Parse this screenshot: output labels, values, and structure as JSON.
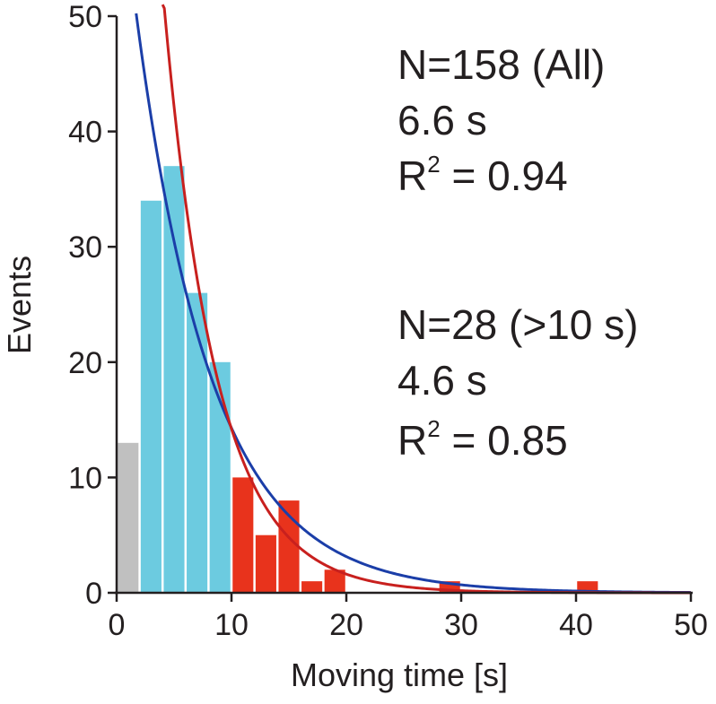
{
  "chart_data": {
    "type": "bar",
    "xlabel": "Moving time [s]",
    "ylabel": "Events",
    "xlim": [
      0,
      50
    ],
    "ylim": [
      0,
      50
    ],
    "xticks": [
      0,
      10,
      20,
      30,
      40,
      50
    ],
    "yticks": [
      0,
      10,
      20,
      30,
      40,
      50
    ],
    "bin_width": 2,
    "bars": [
      {
        "x": 1,
        "value": 13,
        "group": "lt2"
      },
      {
        "x": 3,
        "value": 34,
        "group": "all"
      },
      {
        "x": 5,
        "value": 37,
        "group": "all"
      },
      {
        "x": 7,
        "value": 26,
        "group": "all"
      },
      {
        "x": 9,
        "value": 20,
        "group": "all"
      },
      {
        "x": 11,
        "value": 10,
        "group": "gt10"
      },
      {
        "x": 13,
        "value": 5,
        "group": "gt10"
      },
      {
        "x": 15,
        "value": 8,
        "group": "gt10"
      },
      {
        "x": 17,
        "value": 1,
        "group": "gt10"
      },
      {
        "x": 19,
        "value": 2,
        "group": "gt10"
      },
      {
        "x": 29,
        "value": 1,
        "group": "gt10"
      },
      {
        "x": 41,
        "value": 1,
        "group": "gt10"
      }
    ],
    "group_colors": {
      "lt2": "#c0c0c0",
      "all": "#6ccbe0",
      "gt10": "#e8331c"
    },
    "fits": [
      {
        "color": "#1b3ea8",
        "tau": 6.6,
        "amplitude": 65,
        "x_start": 1.7
      },
      {
        "color": "#c8201e",
        "tau": 4.6,
        "amplitude": 125,
        "x_start": 4.0
      }
    ],
    "annotations": [
      {
        "line1": "N=158 (All)",
        "line2": "6.6 s",
        "r2_prefix": "R",
        "r2_sup": "2",
        "r2_value": " = 0.94"
      },
      {
        "line1": "N=28 (>10 s)",
        "line2": "4.6 s",
        "r2_prefix": "R",
        "r2_sup": "2",
        "r2_value": " = 0.85"
      }
    ]
  }
}
